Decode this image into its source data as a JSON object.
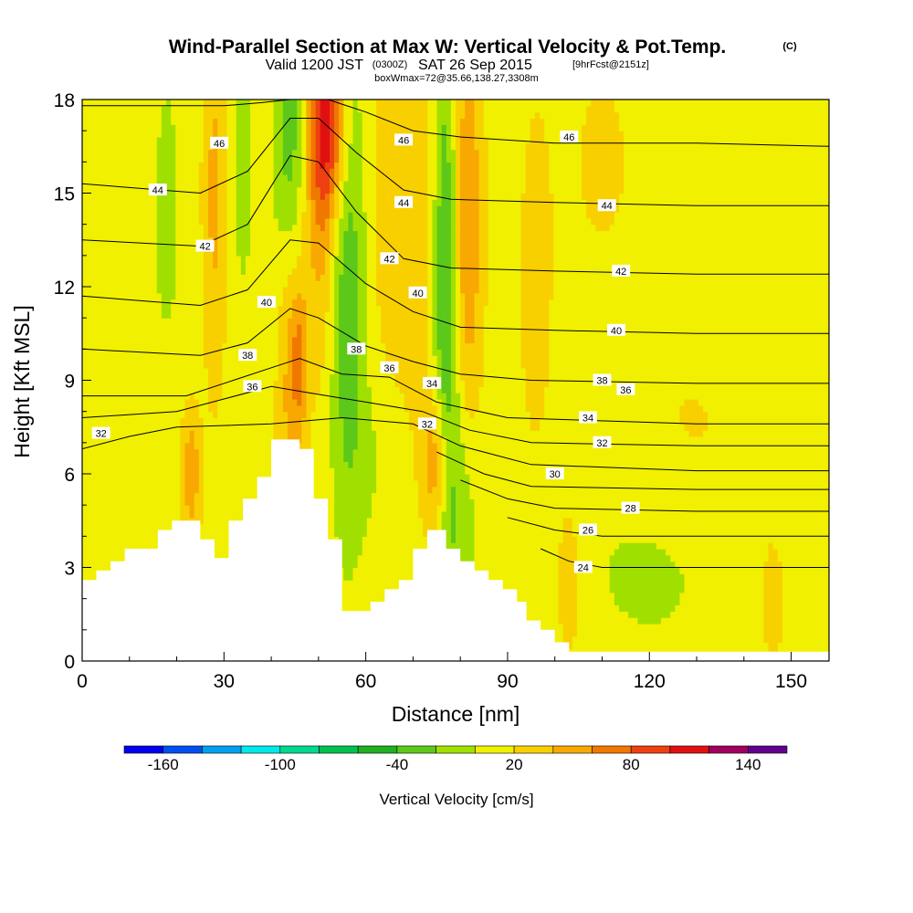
{
  "title": {
    "main": "Wind-Parallel Section at Max W: Vertical Velocity & Pot.Temp.",
    "main_suffix": "(C)",
    "valid_prefix": "Valid 1200 JST",
    "valid_utc": "(0300Z)",
    "valid_date": "SAT 26 Sep 2015",
    "forecast": "[9hrFcst@2151z]",
    "box_info": "boxWmax=72@35.66,138.27,3308m"
  },
  "colors": {
    "bin_colors": [
      "#0000ee",
      "#0050f0",
      "#00a0f0",
      "#00e8e8",
      "#00d890",
      "#00c050",
      "#20b020",
      "#5cc81a",
      "#a0e000",
      "#f0f000",
      "#f8d000",
      "#f8a800",
      "#f07800",
      "#ee4010",
      "#e01010",
      "#a00060",
      "#600090"
    ],
    "terrain": "#ffffff"
  },
  "chart_data": {
    "type": "heatmap",
    "xlabel": "Distance [nm]",
    "ylabel": "Height [Kft MSL]",
    "xlim": [
      0,
      158
    ],
    "ylim": [
      0,
      18
    ],
    "xticks": [
      0,
      30,
      60,
      90,
      120,
      150
    ],
    "yticks": [
      0,
      3,
      6,
      9,
      12,
      15,
      18
    ],
    "colorbar": {
      "label": "Vertical Velocity [cm/s]",
      "bins": [
        -180,
        -160,
        -140,
        -120,
        -100,
        -80,
        -60,
        -40,
        -20,
        0,
        20,
        40,
        60,
        80,
        100,
        120,
        140,
        160
      ],
      "tick_values": [
        -160,
        -100,
        -40,
        20,
        80,
        140
      ],
      "tick_labels": [
        "-160",
        "-100",
        "-40",
        "20",
        "80",
        "140"
      ]
    },
    "terrain_profile": [
      [
        0,
        2.6
      ],
      [
        3,
        2.6
      ],
      [
        3,
        2.9
      ],
      [
        6,
        2.9
      ],
      [
        6,
        3.2
      ],
      [
        9,
        3.2
      ],
      [
        9,
        3.6
      ],
      [
        16,
        3.6
      ],
      [
        16,
        4.2
      ],
      [
        19,
        4.2
      ],
      [
        19,
        4.5
      ],
      [
        25,
        4.5
      ],
      [
        25,
        3.9
      ],
      [
        28,
        3.9
      ],
      [
        28,
        3.3
      ],
      [
        31,
        3.3
      ],
      [
        31,
        4.5
      ],
      [
        34,
        4.5
      ],
      [
        34,
        5.2
      ],
      [
        37,
        5.2
      ],
      [
        37,
        5.9
      ],
      [
        40,
        5.9
      ],
      [
        40,
        7.1
      ],
      [
        46,
        7.1
      ],
      [
        46,
        6.8
      ],
      [
        49,
        6.8
      ],
      [
        49,
        5.2
      ],
      [
        52,
        5.2
      ],
      [
        52,
        3.9
      ],
      [
        55,
        3.9
      ],
      [
        55,
        1.6
      ],
      [
        61,
        1.6
      ],
      [
        61,
        1.9
      ],
      [
        64,
        1.9
      ],
      [
        64,
        2.3
      ],
      [
        67,
        2.3
      ],
      [
        67,
        2.6
      ],
      [
        70,
        2.6
      ],
      [
        70,
        3.6
      ],
      [
        73,
        3.6
      ],
      [
        73,
        4.2
      ],
      [
        77,
        4.2
      ],
      [
        77,
        3.6
      ],
      [
        80,
        3.6
      ],
      [
        80,
        3.2
      ],
      [
        83,
        3.2
      ],
      [
        83,
        2.9
      ],
      [
        86,
        2.9
      ],
      [
        86,
        2.6
      ],
      [
        89,
        2.6
      ],
      [
        89,
        2.3
      ],
      [
        92,
        2.3
      ],
      [
        92,
        1.9
      ],
      [
        94,
        1.9
      ],
      [
        94,
        1.3
      ],
      [
        97,
        1.3
      ],
      [
        97,
        1.0
      ],
      [
        100,
        1.0
      ],
      [
        100,
        0.6
      ],
      [
        103,
        0.6
      ],
      [
        103,
        0.3
      ],
      [
        158,
        0.3
      ]
    ],
    "velocity_field": {
      "background": 10,
      "features": [
        {
          "x": 44,
          "y": 12.0,
          "sx": 2.0,
          "sy": 6.5,
          "v": 45
        },
        {
          "x": 46,
          "y": 9.6,
          "sx": 1.2,
          "sy": 1.5,
          "v": 40
        },
        {
          "x": 52,
          "y": 17.2,
          "sx": 2.8,
          "sy": 2.2,
          "v": 95
        },
        {
          "x": 50,
          "y": 13.5,
          "sx": 2.5,
          "sy": 3.5,
          "v": 30
        },
        {
          "x": 44,
          "y": 16.5,
          "sx": 2.2,
          "sy": 3.5,
          "v": -75
        },
        {
          "x": 56,
          "y": 12.5,
          "sx": 2.5,
          "sy": 5.5,
          "v": -45
        },
        {
          "x": 77,
          "y": 12.5,
          "sx": 2.2,
          "sy": 6.0,
          "v": -70
        },
        {
          "x": 81,
          "y": 14.0,
          "sx": 2.5,
          "sy": 5.0,
          "v": 55
        },
        {
          "x": 72,
          "y": 14.5,
          "sx": 3.5,
          "sy": 5.0,
          "v": 30
        },
        {
          "x": 75,
          "y": 6.3,
          "sx": 2.0,
          "sy": 1.8,
          "v": 55
        },
        {
          "x": 80,
          "y": 5.0,
          "sx": 3.0,
          "sy": 2.5,
          "v": -25
        },
        {
          "x": 28,
          "y": 15.0,
          "sx": 1.8,
          "sy": 4.5,
          "v": 35
        },
        {
          "x": 23,
          "y": 6.0,
          "sx": 1.5,
          "sy": 1.5,
          "v": 45
        },
        {
          "x": 18,
          "y": 14.5,
          "sx": 1.5,
          "sy": 2.5,
          "v": -25
        },
        {
          "x": 34,
          "y": 16.0,
          "sx": 1.2,
          "sy": 2.5,
          "v": -30
        },
        {
          "x": 8,
          "y": 11.0,
          "sx": 5.0,
          "sy": 6.0,
          "v": -10
        },
        {
          "x": 60,
          "y": 6.5,
          "sx": 3.5,
          "sy": 2.0,
          "v": -12
        },
        {
          "x": 65,
          "y": 15.0,
          "sx": 2.5,
          "sy": 4.0,
          "v": 25
        },
        {
          "x": 120,
          "y": 3.0,
          "sx": 15.0,
          "sy": 3.0,
          "v": -12
        },
        {
          "x": 130,
          "y": 7.5,
          "sx": 10.0,
          "sy": 2.0,
          "v": 15
        },
        {
          "x": 140,
          "y": 13.0,
          "sx": 8.0,
          "sy": 4.0,
          "v": -8
        },
        {
          "x": 146,
          "y": 2.0,
          "sx": 2.5,
          "sy": 2.0,
          "v": 18
        },
        {
          "x": 103,
          "y": 2.5,
          "sx": 2.0,
          "sy": 2.0,
          "v": 25
        },
        {
          "x": 110,
          "y": 16.0,
          "sx": 5.0,
          "sy": 2.5,
          "v": 15
        },
        {
          "x": 96,
          "y": 12.0,
          "sx": 3.5,
          "sy": 6.0,
          "v": 15
        }
      ]
    },
    "theta_contours": [
      {
        "value": 46,
        "label": "46",
        "points": [
          [
            0,
            17.8
          ],
          [
            30,
            17.8
          ],
          [
            38,
            17.9
          ],
          [
            44,
            18
          ],
          [
            52,
            18
          ],
          [
            60,
            17.6
          ],
          [
            70,
            17.0
          ],
          [
            80,
            16.8
          ],
          [
            100,
            16.6
          ],
          [
            130,
            16.6
          ],
          [
            158,
            16.5
          ]
        ],
        "label_at": [
          [
            29,
            16.6
          ],
          [
            68,
            16.7
          ],
          [
            103,
            16.8
          ]
        ]
      },
      {
        "value": 44,
        "label": "44",
        "points": [
          [
            0,
            15.3
          ],
          [
            25,
            15.0
          ],
          [
            35,
            15.7
          ],
          [
            44,
            17.4
          ],
          [
            50,
            17.4
          ],
          [
            58,
            16.3
          ],
          [
            68,
            15.1
          ],
          [
            78,
            14.8
          ],
          [
            100,
            14.7
          ],
          [
            130,
            14.6
          ],
          [
            158,
            14.6
          ]
        ],
        "label_at": [
          [
            16,
            15.1
          ],
          [
            68,
            14.7
          ],
          [
            111,
            14.6
          ]
        ]
      },
      {
        "value": 42,
        "label": "42",
        "points": [
          [
            0,
            13.5
          ],
          [
            25,
            13.3
          ],
          [
            35,
            14.0
          ],
          [
            44,
            16.2
          ],
          [
            50,
            16.0
          ],
          [
            58,
            14.4
          ],
          [
            68,
            12.9
          ],
          [
            78,
            12.6
          ],
          [
            100,
            12.5
          ],
          [
            130,
            12.4
          ],
          [
            158,
            12.4
          ]
        ],
        "label_at": [
          [
            26,
            13.3
          ],
          [
            65,
            12.9
          ],
          [
            114,
            12.5
          ]
        ]
      },
      {
        "value": 40,
        "label": "40",
        "points": [
          [
            0,
            11.7
          ],
          [
            25,
            11.4
          ],
          [
            35,
            11.9
          ],
          [
            44,
            13.5
          ],
          [
            50,
            13.4
          ],
          [
            60,
            12.1
          ],
          [
            70,
            11.2
          ],
          [
            80,
            10.7
          ],
          [
            100,
            10.6
          ],
          [
            130,
            10.5
          ],
          [
            158,
            10.5
          ]
        ],
        "label_at": [
          [
            39,
            11.5
          ],
          [
            71,
            11.8
          ],
          [
            113,
            10.6
          ]
        ]
      },
      {
        "value": 38,
        "label": "38",
        "points": [
          [
            0,
            10.0
          ],
          [
            25,
            9.8
          ],
          [
            35,
            10.2
          ],
          [
            44,
            11.3
          ],
          [
            50,
            11.0
          ],
          [
            60,
            10.1
          ],
          [
            70,
            9.6
          ],
          [
            80,
            9.2
          ],
          [
            95,
            9.0
          ],
          [
            130,
            8.9
          ],
          [
            158,
            8.9
          ]
        ],
        "label_at": [
          [
            35,
            9.8
          ],
          [
            58,
            10.0
          ],
          [
            110,
            9.0
          ]
        ]
      },
      {
        "value": 36,
        "label": "36",
        "points": [
          [
            0,
            8.5
          ],
          [
            22,
            8.5
          ],
          [
            32,
            9.0
          ],
          [
            40,
            9.4
          ],
          [
            46,
            9.7
          ],
          [
            55,
            9.2
          ],
          [
            65,
            9.1
          ],
          [
            75,
            8.3
          ],
          [
            90,
            7.8
          ],
          [
            130,
            7.6
          ],
          [
            158,
            7.6
          ]
        ],
        "label_at": [
          [
            36,
            8.8
          ],
          [
            65,
            9.4
          ],
          [
            115,
            8.7
          ]
        ]
      },
      {
        "value": 34,
        "label": "34",
        "points": [
          [
            0,
            7.8
          ],
          [
            20,
            8.0
          ],
          [
            30,
            8.4
          ],
          [
            40,
            8.8
          ],
          [
            48,
            8.6
          ],
          [
            60,
            8.3
          ],
          [
            72,
            8.0
          ],
          [
            82,
            7.4
          ],
          [
            95,
            7.0
          ],
          [
            130,
            6.9
          ],
          [
            158,
            6.9
          ]
        ],
        "label_at": [
          [
            74,
            8.9
          ],
          [
            107,
            7.8
          ]
        ]
      },
      {
        "value": 32,
        "label": "32",
        "points": [
          [
            0,
            6.8
          ],
          [
            10,
            7.2
          ],
          [
            20,
            7.5
          ],
          [
            40,
            7.6
          ],
          [
            55,
            7.8
          ],
          [
            70,
            7.6
          ],
          [
            80,
            6.9
          ],
          [
            95,
            6.3
          ],
          [
            130,
            6.1
          ],
          [
            158,
            6.1
          ]
        ],
        "label_at": [
          [
            4,
            7.3
          ],
          [
            73,
            7.6
          ],
          [
            110,
            7.0
          ]
        ]
      },
      {
        "value": 30,
        "label": "30",
        "points": [
          [
            75,
            6.7
          ],
          [
            85,
            6.0
          ],
          [
            95,
            5.6
          ],
          [
            130,
            5.5
          ],
          [
            158,
            5.5
          ]
        ],
        "label_at": [
          [
            100,
            6.0
          ]
        ]
      },
      {
        "value": 28,
        "label": "28",
        "points": [
          [
            80,
            5.8
          ],
          [
            90,
            5.2
          ],
          [
            100,
            4.9
          ],
          [
            130,
            4.8
          ],
          [
            158,
            4.8
          ]
        ],
        "label_at": [
          [
            116,
            4.9
          ]
        ]
      },
      {
        "value": 26,
        "label": "26",
        "points": [
          [
            90,
            4.6
          ],
          [
            100,
            4.2
          ],
          [
            110,
            4.0
          ],
          [
            130,
            4.0
          ],
          [
            158,
            4.0
          ]
        ],
        "label_at": [
          [
            107,
            4.2
          ]
        ]
      },
      {
        "value": 24,
        "label": "24",
        "points": [
          [
            97,
            3.6
          ],
          [
            103,
            3.2
          ],
          [
            110,
            3.0
          ],
          [
            158,
            3.0
          ]
        ],
        "label_at": [
          [
            106,
            3.0
          ]
        ]
      }
    ]
  }
}
